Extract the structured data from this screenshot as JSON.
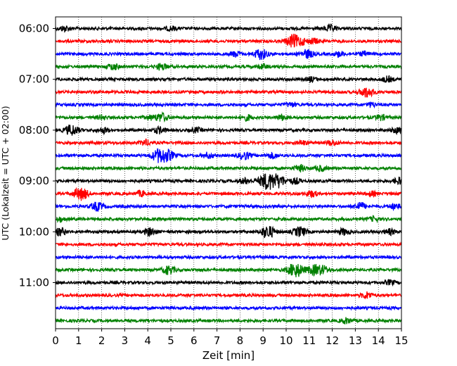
{
  "chart_data": {
    "type": "line",
    "subtype": "helicorder-seismogram",
    "xlabel": "Zeit  [min]",
    "ylabel": "UTC (Lokalzeit = UTC + 02:00)",
    "xlim": [
      0,
      15
    ],
    "x_ticks": [
      "0",
      "1",
      "2",
      "3",
      "4",
      "5",
      "6",
      "7",
      "8",
      "9",
      "10",
      "11",
      "12",
      "13",
      "14",
      "15"
    ],
    "y_tick_labels": [
      "06:00",
      "07:00",
      "08:00",
      "09:00",
      "10:00",
      "11:00"
    ],
    "y_tick_rows": [
      0,
      4,
      8,
      12,
      16,
      20
    ],
    "grid": "vertical dotted",
    "row_colors": [
      "#000000",
      "#ff0000",
      "#0000ff",
      "#008000"
    ],
    "rows": [
      {
        "events": [
          [
            0.4,
            0.5
          ],
          [
            5.0,
            0.4
          ],
          [
            11.9,
            0.6
          ]
        ]
      },
      {
        "events": [
          [
            10.3,
            1.2
          ],
          [
            10.7,
            0.5
          ],
          [
            11.2,
            0.5
          ]
        ]
      },
      {
        "events": [
          [
            7.8,
            0.5
          ],
          [
            8.9,
            1.0
          ],
          [
            10.9,
            0.8
          ],
          [
            12.3,
            0.5
          ],
          [
            13.4,
            0.4
          ]
        ]
      },
      {
        "events": [
          [
            2.5,
            0.6
          ],
          [
            4.6,
            0.6
          ],
          [
            9.0,
            0.4
          ]
        ]
      },
      {
        "events": [
          [
            11.1,
            0.4
          ],
          [
            14.4,
            0.5
          ]
        ]
      },
      {
        "events": [
          [
            13.5,
            1.0
          ]
        ]
      },
      {
        "events": [
          [
            10.2,
            0.4
          ],
          [
            13.7,
            0.4
          ]
        ]
      },
      {
        "events": [
          [
            2.0,
            0.4
          ],
          [
            4.1,
            0.4
          ],
          [
            4.6,
            0.8
          ],
          [
            8.3,
            0.5
          ],
          [
            9.8,
            0.5
          ],
          [
            14.1,
            0.5
          ]
        ]
      },
      {
        "events": [
          [
            0.7,
            1.0
          ],
          [
            2.1,
            0.5
          ],
          [
            4.5,
            0.6
          ],
          [
            6.1,
            0.4
          ],
          [
            14.8,
            0.5
          ]
        ]
      },
      {
        "events": [
          [
            3.9,
            0.5
          ],
          [
            10.7,
            0.4
          ],
          [
            12.0,
            0.5
          ]
        ]
      },
      {
        "events": [
          [
            4.5,
            1.3
          ],
          [
            4.9,
            0.8
          ],
          [
            6.6,
            0.5
          ],
          [
            8.2,
            0.7
          ],
          [
            9.4,
            0.5
          ]
        ]
      },
      {
        "events": [
          [
            10.6,
            0.6
          ],
          [
            11.5,
            0.5
          ]
        ]
      },
      {
        "events": [
          [
            8.2,
            0.5
          ],
          [
            9.2,
            1.6
          ],
          [
            9.7,
            1.0
          ],
          [
            10.4,
            0.5
          ],
          [
            14.9,
            0.6
          ]
        ]
      },
      {
        "events": [
          [
            1.1,
            1.2
          ],
          [
            3.7,
            0.5
          ],
          [
            11.1,
            0.6
          ],
          [
            13.7,
            0.4
          ]
        ]
      },
      {
        "events": [
          [
            1.8,
            0.8
          ],
          [
            13.2,
            0.7
          ],
          [
            14.7,
            0.5
          ]
        ]
      },
      {
        "events": [
          [
            0.2,
            0.4
          ],
          [
            13.8,
            0.4
          ]
        ]
      },
      {
        "events": [
          [
            0.2,
            0.7
          ],
          [
            4.1,
            0.7
          ],
          [
            9.2,
            1.2
          ],
          [
            10.6,
            0.9
          ],
          [
            12.5,
            0.6
          ],
          [
            14.5,
            0.5
          ]
        ]
      },
      {
        "events": []
      },
      {
        "events": []
      },
      {
        "events": [
          [
            4.9,
            0.8
          ],
          [
            10.4,
            1.4
          ],
          [
            11.2,
            0.9
          ],
          [
            11.6,
            0.7
          ]
        ]
      },
      {
        "events": [
          [
            14.5,
            0.4
          ]
        ]
      },
      {
        "events": [
          [
            13.5,
            0.6
          ]
        ]
      },
      {
        "events": []
      },
      {
        "events": [
          [
            12.6,
            0.5
          ]
        ]
      }
    ]
  }
}
